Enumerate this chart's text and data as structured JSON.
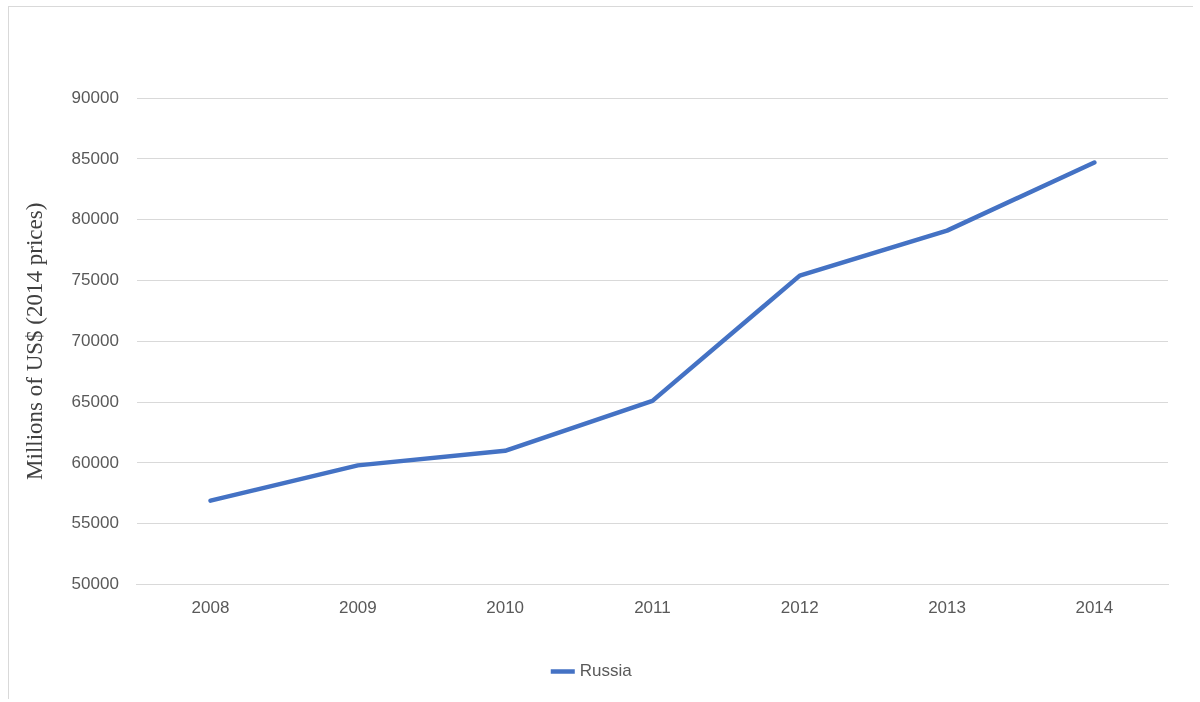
{
  "chart_data": {
    "type": "line",
    "ylabel": "Millions of US$ (2014 prices)",
    "categories": [
      "2008",
      "2009",
      "2010",
      "2011",
      "2012",
      "2013",
      "2014"
    ],
    "series": [
      {
        "name": "Russia",
        "color": "#4472c4",
        "values": [
          56900,
          59800,
          61000,
          65100,
          75400,
          79100,
          84700
        ]
      }
    ],
    "ylim": [
      50000,
      90000
    ],
    "yticks": [
      50000,
      55000,
      60000,
      65000,
      70000,
      75000,
      80000,
      85000,
      90000
    ],
    "grid": "y",
    "legend": "bottom",
    "marker": "none",
    "line_style": "solid"
  }
}
